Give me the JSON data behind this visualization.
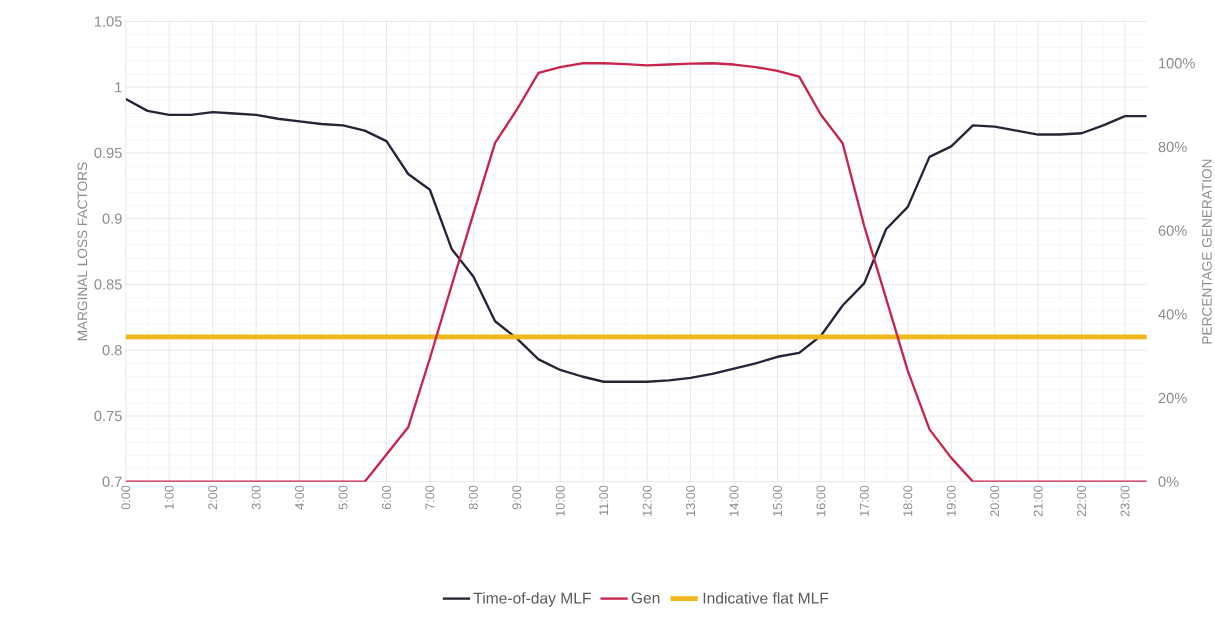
{
  "chart_data": {
    "type": "line",
    "marker": "none",
    "grid": true,
    "legend": "bottom",
    "ylabel": "MARGINAL LOSS FACTORS",
    "y2label": "PERCENTAGE GENERATION",
    "x": [
      0,
      0.5,
      1,
      1.5,
      2,
      2.5,
      3,
      3.5,
      4,
      4.5,
      5,
      5.5,
      6,
      6.5,
      7,
      7.5,
      8,
      8.5,
      9,
      9.5,
      10,
      10.5,
      11,
      11.5,
      12,
      12.5,
      13,
      13.5,
      14,
      14.5,
      15,
      15.5,
      16,
      16.5,
      17,
      17.5,
      18,
      18.5,
      19,
      19.5,
      20,
      20.5,
      21,
      21.5,
      22,
      22.5,
      23,
      23.5
    ],
    "xlim": [
      0,
      23.5
    ],
    "xticks": [
      {
        "value": 0,
        "label": "0:00"
      },
      {
        "value": 1,
        "label": "1:00"
      },
      {
        "value": 2,
        "label": "2:00"
      },
      {
        "value": 3,
        "label": "3:00"
      },
      {
        "value": 4,
        "label": "4:00"
      },
      {
        "value": 5,
        "label": "5:00"
      },
      {
        "value": 6,
        "label": "6:00"
      },
      {
        "value": 7,
        "label": "7:00"
      },
      {
        "value": 8,
        "label": "8:00"
      },
      {
        "value": 9,
        "label": "9:00"
      },
      {
        "value": 10,
        "label": "10:00"
      },
      {
        "value": 11,
        "label": "11:00"
      },
      {
        "value": 12,
        "label": "12:00"
      },
      {
        "value": 13,
        "label": "13:00"
      },
      {
        "value": 14,
        "label": "14:00"
      },
      {
        "value": 15,
        "label": "15:00"
      },
      {
        "value": 16,
        "label": "16:00"
      },
      {
        "value": 17,
        "label": "17:00"
      },
      {
        "value": 18,
        "label": "18:00"
      },
      {
        "value": 19,
        "label": "19:00"
      },
      {
        "value": 20,
        "label": "20:00"
      },
      {
        "value": 21,
        "label": "21:00"
      },
      {
        "value": 22,
        "label": "22:00"
      },
      {
        "value": 23,
        "label": "23:00"
      }
    ],
    "ylim": [
      0.7,
      1.05
    ],
    "yticks": [
      0.7,
      0.75,
      0.8,
      0.85,
      0.9,
      0.95,
      1,
      1.05
    ],
    "y2lim": [
      0,
      110
    ],
    "y2ticks": [
      {
        "value": 0,
        "label": "0%"
      },
      {
        "value": 20,
        "label": "20%"
      },
      {
        "value": 40,
        "label": "40%"
      },
      {
        "value": 60,
        "label": "60%"
      },
      {
        "value": 80,
        "label": "80%"
      },
      {
        "value": 100,
        "label": "100%"
      }
    ],
    "series": [
      {
        "name": "Time-of-day MLF",
        "color": "#2b2238",
        "values": [
          0.991,
          0.982,
          0.979,
          0.979,
          0.981,
          0.98,
          0.979,
          0.976,
          0.974,
          0.972,
          0.971,
          0.967,
          0.959,
          0.934,
          0.922,
          0.877,
          0.856,
          0.822,
          0.809,
          0.793,
          0.785,
          0.78,
          0.776,
          0.776,
          0.776,
          0.777,
          0.779,
          0.782,
          0.786,
          0.79,
          0.795,
          0.798,
          0.811,
          0.834,
          0.851,
          0.892,
          0.909,
          0.947,
          0.955,
          0.971,
          0.97,
          0.967,
          0.964,
          0.964,
          0.965,
          0.971,
          0.978,
          0.978
        ]
      },
      {
        "name": "Gen",
        "color": "#c8254e",
        "axis": "y2",
        "values": [
          0,
          0,
          0,
          0,
          0,
          0,
          0,
          0,
          0,
          0,
          0,
          0,
          6.5,
          13,
          29.5,
          46.9,
          64,
          81,
          88.9,
          97.7,
          99.1,
          100,
          100,
          99.8,
          99.5,
          99.7,
          99.9,
          100,
          99.7,
          99.1,
          98.2,
          96.8,
          87.7,
          80.9,
          61,
          43.8,
          26.5,
          12.5,
          5.7,
          0,
          0,
          0,
          0,
          0,
          0,
          0,
          0,
          0
        ]
      },
      {
        "name": "Indicative flat MLF",
        "color": "#f0b81c",
        "values": [
          0.81,
          0.81,
          0.81,
          0.81,
          0.81,
          0.81,
          0.81,
          0.81,
          0.81,
          0.81,
          0.81,
          0.81,
          0.81,
          0.81,
          0.81,
          0.81,
          0.81,
          0.81,
          0.81,
          0.81,
          0.81,
          0.81,
          0.81,
          0.81,
          0.81,
          0.81,
          0.81,
          0.81,
          0.81,
          0.81,
          0.81,
          0.81,
          0.81,
          0.81,
          0.81,
          0.81,
          0.81,
          0.81,
          0.81,
          0.81,
          0.81,
          0.81,
          0.81,
          0.81,
          0.81,
          0.81,
          0.81,
          0.81
        ]
      }
    ]
  }
}
